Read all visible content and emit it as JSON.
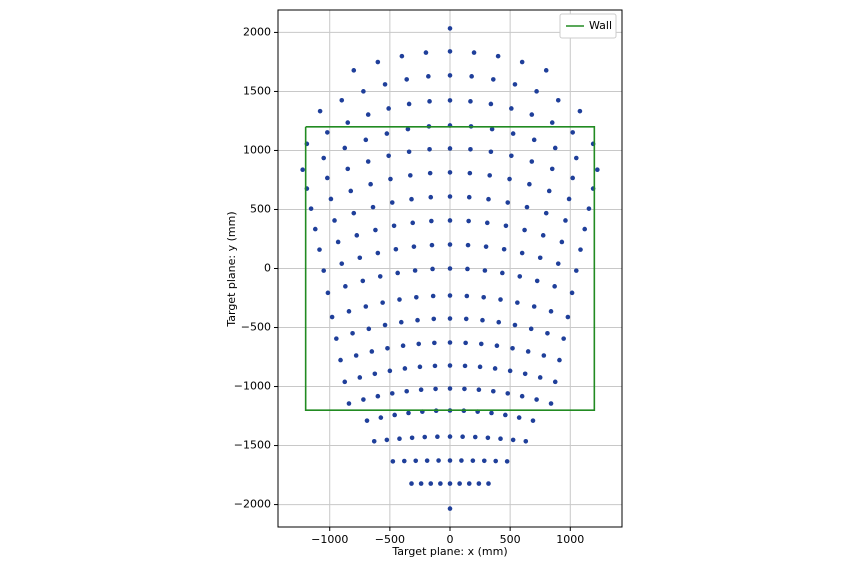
{
  "chart_data": {
    "type": "scatter",
    "xlabel": "Target plane: x (mm)",
    "ylabel": "Target plane: y (mm)",
    "xlim": [
      -1430,
      1430
    ],
    "ylim": [
      -2190,
      2190
    ],
    "xticks": [
      {
        "value": -1000,
        "label": "−1000"
      },
      {
        "value": -500,
        "label": "−500"
      },
      0,
      500,
      1000
    ],
    "yticks": [
      {
        "value": -2000,
        "label": "−2000"
      },
      {
        "value": -1500,
        "label": "−1500"
      },
      {
        "value": -1000,
        "label": "−1000"
      },
      {
        "value": -500,
        "label": "−500"
      },
      0,
      500,
      1000,
      1500,
      2000
    ],
    "grid": true,
    "legend": "upper right",
    "series": [
      {
        "type": "scatter",
        "color": "#1f3f9a",
        "x": [
          0,
          -800,
          -600,
          -400,
          -200,
          0,
          200,
          400,
          600,
          800,
          -1080,
          -900,
          -720,
          -540,
          -360,
          -180,
          0,
          180,
          360,
          540,
          720,
          900,
          1080,
          -1190,
          -1020,
          -850,
          -680,
          -510,
          -340,
          -170,
          0,
          170,
          340,
          510,
          680,
          850,
          1020,
          1190,
          -1225,
          -1050,
          -875,
          -700,
          -525,
          -350,
          -175,
          0,
          175,
          350,
          525,
          700,
          875,
          1050,
          1225,
          -1190,
          -1020,
          -850,
          -680,
          -510,
          -340,
          -170,
          0,
          170,
          340,
          510,
          680,
          850,
          1020,
          1190,
          -1155,
          -990,
          -825,
          -660,
          -495,
          -330,
          -165,
          0,
          165,
          330,
          495,
          660,
          825,
          990,
          1155,
          -1120,
          -960,
          -800,
          -640,
          -480,
          -320,
          -160,
          0,
          160,
          320,
          480,
          640,
          800,
          960,
          1120,
          -1085,
          -930,
          -775,
          -620,
          -465,
          -310,
          -155,
          0,
          155,
          310,
          465,
          620,
          775,
          930,
          1085,
          -1050,
          -900,
          -750,
          -600,
          -450,
          -300,
          -150,
          0,
          150,
          300,
          450,
          600,
          750,
          900,
          1050,
          -1015,
          -870,
          -725,
          -580,
          -435,
          -290,
          -145,
          0,
          145,
          290,
          435,
          580,
          725,
          870,
          1015,
          -980,
          -840,
          -700,
          -560,
          -420,
          -280,
          -140,
          0,
          140,
          280,
          420,
          560,
          700,
          840,
          980,
          -945,
          -810,
          -675,
          -540,
          -405,
          -270,
          -135,
          0,
          135,
          270,
          405,
          540,
          675,
          810,
          945,
          -910,
          -780,
          -650,
          -520,
          -390,
          -260,
          -130,
          0,
          130,
          260,
          390,
          520,
          650,
          780,
          910,
          -875,
          -750,
          -625,
          -500,
          -375,
          -250,
          -125,
          0,
          125,
          250,
          375,
          500,
          625,
          750,
          875,
          -840,
          -720,
          -600,
          -480,
          -360,
          -240,
          -120,
          0,
          120,
          240,
          360,
          480,
          600,
          720,
          840,
          -690,
          -575,
          -460,
          -345,
          -230,
          -115,
          0,
          115,
          230,
          345,
          460,
          575,
          690,
          -630,
          -525,
          -420,
          -315,
          -210,
          -105,
          0,
          105,
          210,
          315,
          420,
          525,
          630,
          -475,
          -380,
          -285,
          -190,
          -95,
          0,
          95,
          190,
          285,
          380,
          475,
          -320,
          -240,
          -160,
          -80,
          0,
          80,
          160,
          240,
          320,
          0
        ],
        "y": [
          2034,
          1679,
          1749,
          1799,
          1829,
          1839,
          1829,
          1799,
          1749,
          1679,
          1333,
          1425,
          1501,
          1560,
          1602,
          1628,
          1636,
          1628,
          1602,
          1560,
          1501,
          1425,
          1333,
          1056,
          1153,
          1236,
          1304,
          1356,
          1394,
          1416,
          1424,
          1416,
          1394,
          1356,
          1304,
          1236,
          1153,
          1056,
          837,
          936,
          1021,
          1090,
          1143,
          1181,
          1204,
          1212,
          1204,
          1181,
          1143,
          1090,
          1021,
          936,
          837,
          677,
          767,
          844,
          906,
          955,
          989,
          1010,
          1017,
          1010,
          989,
          955,
          906,
          844,
          767,
          677,
          507,
          589,
          657,
          714,
          758,
          789,
          808,
          814,
          808,
          789,
          758,
          714,
          657,
          589,
          507,
          334,
          407,
          469,
          520,
          559,
          587,
          604,
          610,
          604,
          587,
          559,
          520,
          469,
          407,
          334,
          160,
          225,
          281,
          326,
          362,
          387,
          402,
          407,
          402,
          387,
          362,
          326,
          281,
          225,
          160,
          -18,
          41,
          91,
          131,
          163,
          185,
          198,
          203,
          198,
          185,
          163,
          131,
          91,
          41,
          -18,
          -206,
          -151,
          -105,
          -67,
          -38,
          -17,
          -4,
          0,
          -4,
          -17,
          -38,
          -67,
          -105,
          -151,
          -206,
          -411,
          -363,
          -322,
          -289,
          -263,
          -244,
          -233,
          -229,
          -233,
          -244,
          -263,
          -289,
          -322,
          -363,
          -411,
          -594,
          -549,
          -511,
          -479,
          -455,
          -438,
          -427,
          -424,
          -427,
          -438,
          -455,
          -479,
          -511,
          -549,
          -594,
          -776,
          -737,
          -703,
          -676,
          -654,
          -639,
          -630,
          -627,
          -630,
          -639,
          -654,
          -676,
          -703,
          -737,
          -776,
          -960,
          -923,
          -892,
          -867,
          -847,
          -833,
          -825,
          -822,
          -825,
          -833,
          -847,
          -867,
          -892,
          -923,
          -960,
          -1144,
          -1110,
          -1082,
          -1058,
          -1040,
          -1027,
          -1020,
          -1017,
          -1020,
          -1027,
          -1040,
          -1058,
          -1082,
          -1110,
          -1144,
          -1289,
          -1263,
          -1241,
          -1224,
          -1213,
          -1205,
          -1203,
          -1205,
          -1213,
          -1224,
          -1241,
          -1263,
          -1289,
          -1464,
          -1452,
          -1442,
          -1434,
          -1428,
          -1425,
          -1424,
          -1425,
          -1428,
          -1434,
          -1442,
          -1452,
          -1464,
          -1634,
          -1631,
          -1629,
          -1628,
          -1627,
          -1627,
          -1627,
          -1628,
          -1629,
          -1631,
          -1634,
          -1822,
          -1822,
          -1822,
          -1822,
          -1822,
          -1822,
          -1822,
          -1822,
          -1822,
          -2034
        ]
      },
      {
        "type": "line",
        "name": "Wall",
        "color": "#228b22",
        "x": [
          -1200,
          1200,
          1200,
          -1200,
          -1200
        ],
        "y": [
          1200,
          1200,
          -1200,
          -1200,
          1200
        ]
      }
    ]
  }
}
